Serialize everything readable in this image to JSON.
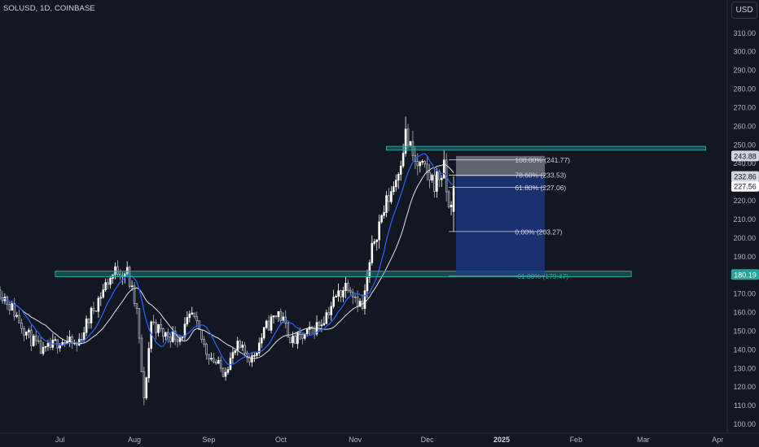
{
  "header": {
    "symbol_label": "SOLUSD, 1D, COINBASE"
  },
  "currency_button": "USD",
  "colors": {
    "background": "#131722",
    "candle_up": "#ffffff",
    "candle_down": "#b2b5be",
    "ma_fast": "#2962ff",
    "ma_slow": "#e0e3eb",
    "zone": "#26a69a",
    "fib_fill": "#1e3a8a",
    "fib_top_fill": "#9598a1"
  },
  "chart_data": {
    "type": "candlestick",
    "symbol": "SOLUSD",
    "timeframe": "1D",
    "exchange": "COINBASE",
    "ylim": [
      95,
      318
    ],
    "y_ticks": [
      100,
      110,
      120,
      130,
      140,
      150,
      160,
      170,
      180,
      190,
      200,
      210,
      220,
      230,
      240,
      250,
      260,
      270,
      280,
      290,
      300,
      310
    ],
    "y_tick_labels": [
      "100.00",
      "110.00",
      "120.00",
      "130.00",
      "140.00",
      "150.00",
      "160.00",
      "170.00",
      "180.00",
      "190.00",
      "200.00",
      "210.00",
      "220.00",
      "230.00",
      "240.00",
      "250.00",
      "260.00",
      "270.00",
      "280.00",
      "290.00",
      "300.00",
      "310.00"
    ],
    "price_labels": [
      {
        "label": "243.88",
        "value": 243.88,
        "style": "light"
      },
      {
        "label": "232.86",
        "value": 232.86,
        "style": "light"
      },
      {
        "label": "227.56",
        "value": 227.56,
        "style": "white"
      },
      {
        "label": "180.19",
        "value": 180.19,
        "style": "teal"
      }
    ],
    "time_range": [
      "2024-06-06",
      "2025-04-05"
    ],
    "x_labels": [
      {
        "label": "Jul",
        "date": "2024-07-01",
        "bold": false
      },
      {
        "label": "Aug",
        "date": "2024-08-01",
        "bold": false
      },
      {
        "label": "Sep",
        "date": "2024-09-01",
        "bold": false
      },
      {
        "label": "Oct",
        "date": "2024-10-01",
        "bold": false
      },
      {
        "label": "Nov",
        "date": "2024-11-01",
        "bold": false
      },
      {
        "label": "Dec",
        "date": "2024-12-01",
        "bold": false
      },
      {
        "label": "2025",
        "date": "2025-01-01",
        "bold": true
      },
      {
        "label": "Feb",
        "date": "2025-02-01",
        "bold": false
      },
      {
        "label": "Mar",
        "date": "2025-03-01",
        "bold": false
      },
      {
        "label": "Apr",
        "date": "2025-04-01",
        "bold": false
      }
    ],
    "closes": [
      {
        "date": "2024-06-06",
        "value": 172
      },
      {
        "date": "2024-06-12",
        "value": 160
      },
      {
        "date": "2024-06-18",
        "value": 147
      },
      {
        "date": "2024-06-24",
        "value": 138
      },
      {
        "date": "2024-07-01",
        "value": 145
      },
      {
        "date": "2024-07-08",
        "value": 142
      },
      {
        "date": "2024-07-15",
        "value": 162
      },
      {
        "date": "2024-07-21",
        "value": 177
      },
      {
        "date": "2024-07-25",
        "value": 183
      },
      {
        "date": "2024-07-29",
        "value": 181
      },
      {
        "date": "2024-08-02",
        "value": 160
      },
      {
        "date": "2024-08-05",
        "value": 112
      },
      {
        "date": "2024-08-08",
        "value": 155
      },
      {
        "date": "2024-08-13",
        "value": 148
      },
      {
        "date": "2024-08-20",
        "value": 147
      },
      {
        "date": "2024-08-25",
        "value": 158
      },
      {
        "date": "2024-08-31",
        "value": 139
      },
      {
        "date": "2024-09-07",
        "value": 128
      },
      {
        "date": "2024-09-13",
        "value": 141
      },
      {
        "date": "2024-09-19",
        "value": 135
      },
      {
        "date": "2024-09-25",
        "value": 152
      },
      {
        "date": "2024-09-30",
        "value": 160
      },
      {
        "date": "2024-10-06",
        "value": 144
      },
      {
        "date": "2024-10-12",
        "value": 148
      },
      {
        "date": "2024-10-18",
        "value": 155
      },
      {
        "date": "2024-10-24",
        "value": 168
      },
      {
        "date": "2024-10-29",
        "value": 176
      },
      {
        "date": "2024-11-04",
        "value": 162
      },
      {
        "date": "2024-11-09",
        "value": 200
      },
      {
        "date": "2024-11-13",
        "value": 215
      },
      {
        "date": "2024-11-18",
        "value": 232
      },
      {
        "date": "2024-11-22",
        "value": 255
      },
      {
        "date": "2024-11-26",
        "value": 240
      },
      {
        "date": "2024-11-30",
        "value": 235
      },
      {
        "date": "2024-12-04",
        "value": 230
      },
      {
        "date": "2024-12-08",
        "value": 236
      },
      {
        "date": "2024-12-10",
        "value": 215
      },
      {
        "date": "2024-12-12",
        "value": 227.56
      }
    ],
    "zones": [
      {
        "from": "2024-11-14",
        "to": "2025-03-27",
        "low": 247,
        "high": 249
      },
      {
        "from": "2024-06-29",
        "to": "2025-02-24",
        "low": 179,
        "high": 182
      }
    ],
    "fib": {
      "from": "2024-12-05",
      "to": "2025-01-19",
      "line_start": "2024-12-10",
      "box_start": "2024-12-13",
      "fill_low": 180.19,
      "fill_high": 232.86,
      "top_low": 232.86,
      "top_high": 243.88,
      "levels": [
        {
          "value": 241.77,
          "label": "100.00% (241.77)"
        },
        {
          "value": 233.53,
          "label": "78.60% (233.53)"
        },
        {
          "value": 227.06,
          "label": "61.80% (227.06)"
        },
        {
          "value": 203.27,
          "label": "0.00% (203.27)"
        },
        {
          "value": 179.47,
          "label": "-61.80% (179.47)"
        }
      ]
    }
  }
}
